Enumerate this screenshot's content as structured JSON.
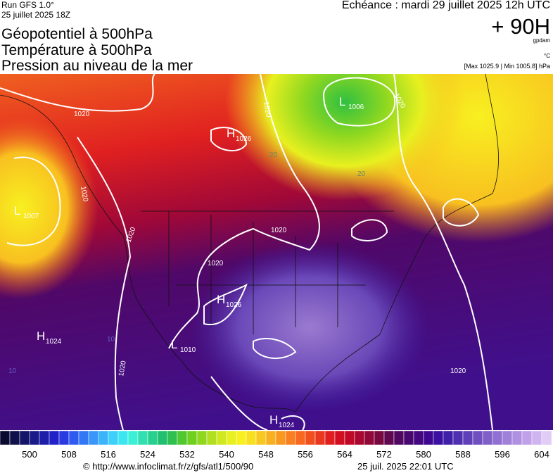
{
  "header": {
    "run": "Run GFS 1.0°",
    "run_date": "25 juillet 2025 18Z",
    "titles": [
      "Géopotentiel à 500hPa",
      "Température à 500hPa",
      "Pression au niveau de la mer"
    ],
    "valid_time": "Echéance : mardi 29 juillet 2025 12h UTC",
    "lead": "+ 90H",
    "unit_geopotential": "gpdam",
    "unit_temperature": "°C",
    "pressure_range": "[Max 1025.9 | Min 1005.8] hPa"
  },
  "map": {
    "pressure_centers": [
      {
        "type": "H",
        "value": 1026
      },
      {
        "type": "L",
        "value": 1006
      },
      {
        "type": "L",
        "value": 1007
      },
      {
        "type": "H",
        "value": 1026
      },
      {
        "type": "H",
        "value": 1024
      },
      {
        "type": "L",
        "value": 1010
      },
      {
        "type": "H",
        "value": 1024
      }
    ],
    "contour_labels": [
      "1020",
      "1020",
      "1020",
      "1020",
      "1020",
      "1020",
      "1020",
      "1020",
      "1020",
      "20",
      "20",
      "10",
      "10"
    ]
  },
  "colorbar": {
    "labels": [
      500,
      508,
      516,
      524,
      532,
      540,
      548,
      556,
      564,
      572,
      580,
      588,
      596,
      604
    ],
    "colors": [
      "#0a0a30",
      "#10104a",
      "#141468",
      "#1a1a88",
      "#1e1ea8",
      "#2222c8",
      "#2a3ae0",
      "#2e5af0",
      "#3278f5",
      "#3a96f8",
      "#3cb4fa",
      "#3cd0fa",
      "#3ce6f0",
      "#3cf0d8",
      "#30e0b0",
      "#28d090",
      "#20c070",
      "#30c050",
      "#50c830",
      "#70d020",
      "#90d820",
      "#b0e020",
      "#d0e820",
      "#e8f020",
      "#f8f020",
      "#f8e020",
      "#f8c820",
      "#f8b020",
      "#f89820",
      "#f88020",
      "#f86820",
      "#f05020",
      "#e83820",
      "#e02020",
      "#d01020",
      "#c00828",
      "#a80830",
      "#900838",
      "#780840",
      "#600850",
      "#500860",
      "#480870",
      "#440880",
      "#400890",
      "#3c10a0",
      "#4020a8",
      "#5030b0",
      "#6040b8",
      "#7050c0",
      "#8060c8",
      "#9070d0",
      "#a080d8",
      "#b090e0",
      "#c0a0e8",
      "#d0b4f0",
      "#e0ccf4"
    ]
  },
  "footer": {
    "source": "© http://www.infoclimat.fr/z/gfs/atl1/500/90",
    "generated": "25 juil. 2025 22:01 UTC"
  }
}
